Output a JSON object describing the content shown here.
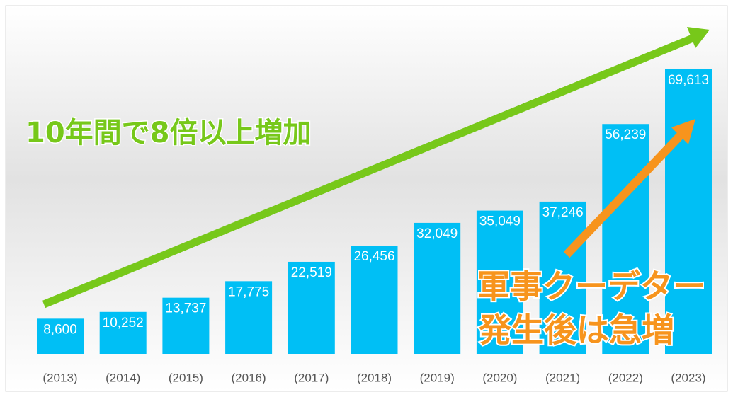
{
  "chart_data": {
    "type": "bar",
    "categories": [
      "(2013)",
      "(2014)",
      "(2015)",
      "(2016)",
      "(2017)",
      "(2018)",
      "(2019)",
      "(2020)",
      "(2021)",
      "(2022)",
      "(2023)"
    ],
    "values": [
      8600,
      10252,
      13737,
      17775,
      22519,
      26456,
      32049,
      35049,
      37246,
      56239,
      69613
    ],
    "value_labels": [
      "8,600",
      "10,252",
      "13,737",
      "17,775",
      "22,519",
      "26,456",
      "32,049",
      "35,049",
      "37,246",
      "56,239",
      "69,613"
    ],
    "color": "#00bff5",
    "annotations": [
      "10年間で8倍以上増加",
      "軍事クーデター",
      "発生後は急増"
    ]
  }
}
